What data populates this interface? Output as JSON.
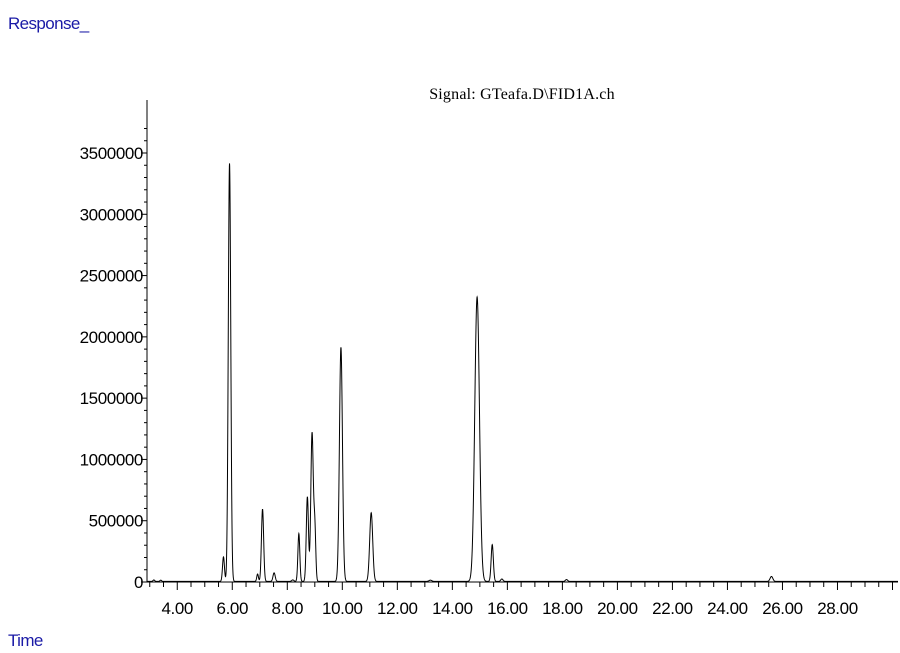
{
  "chart_data": {
    "type": "line",
    "title": "Signal: GTeafa.D\\FID1A.ch",
    "ylabel": "Response_",
    "xlabel": "Time",
    "xlim": [
      2.9,
      30.2
    ],
    "ylim": [
      0,
      3700000
    ],
    "x_ticks": [
      4.0,
      6.0,
      8.0,
      10.0,
      12.0,
      14.0,
      16.0,
      18.0,
      20.0,
      22.0,
      24.0,
      26.0,
      28.0
    ],
    "x_tick_labels": [
      "4.00",
      "6.00",
      "8.00",
      "10.00",
      "12.00",
      "14.00",
      "16.00",
      "18.00",
      "20.00",
      "22.00",
      "24.00",
      "26.00",
      "28.00"
    ],
    "y_ticks": [
      0,
      500000,
      1000000,
      1500000,
      2000000,
      2500000,
      3000000,
      3500000
    ],
    "y_tick_labels": [
      "0",
      "500000",
      "1000000",
      "1500000",
      "2000000",
      "2500000",
      "3000000",
      "3500000"
    ],
    "baseline": 5000,
    "peaks": [
      {
        "rt": 3.15,
        "height": 12000,
        "width": 0.03
      },
      {
        "rt": 3.4,
        "height": 10000,
        "width": 0.03
      },
      {
        "rt": 5.68,
        "height": 200000,
        "width": 0.035
      },
      {
        "rt": 5.9,
        "height": 3410000,
        "width": 0.045
      },
      {
        "rt": 6.92,
        "height": 60000,
        "width": 0.03
      },
      {
        "rt": 7.1,
        "height": 590000,
        "width": 0.04
      },
      {
        "rt": 7.52,
        "height": 70000,
        "width": 0.04
      },
      {
        "rt": 8.2,
        "height": 12000,
        "width": 0.04
      },
      {
        "rt": 8.42,
        "height": 390000,
        "width": 0.035
      },
      {
        "rt": 8.73,
        "height": 690000,
        "width": 0.04
      },
      {
        "rt": 8.9,
        "height": 1210000,
        "width": 0.045
      },
      {
        "rt": 9.0,
        "height": 430000,
        "width": 0.035
      },
      {
        "rt": 9.95,
        "height": 1910000,
        "width": 0.055
      },
      {
        "rt": 11.05,
        "height": 560000,
        "width": 0.055
      },
      {
        "rt": 13.2,
        "height": 10000,
        "width": 0.05
      },
      {
        "rt": 14.9,
        "height": 2320000,
        "width": 0.085
      },
      {
        "rt": 15.45,
        "height": 300000,
        "width": 0.04
      },
      {
        "rt": 15.8,
        "height": 20000,
        "width": 0.04
      },
      {
        "rt": 18.15,
        "height": 15000,
        "width": 0.04
      },
      {
        "rt": 25.6,
        "height": 40000,
        "width": 0.05
      }
    ]
  }
}
